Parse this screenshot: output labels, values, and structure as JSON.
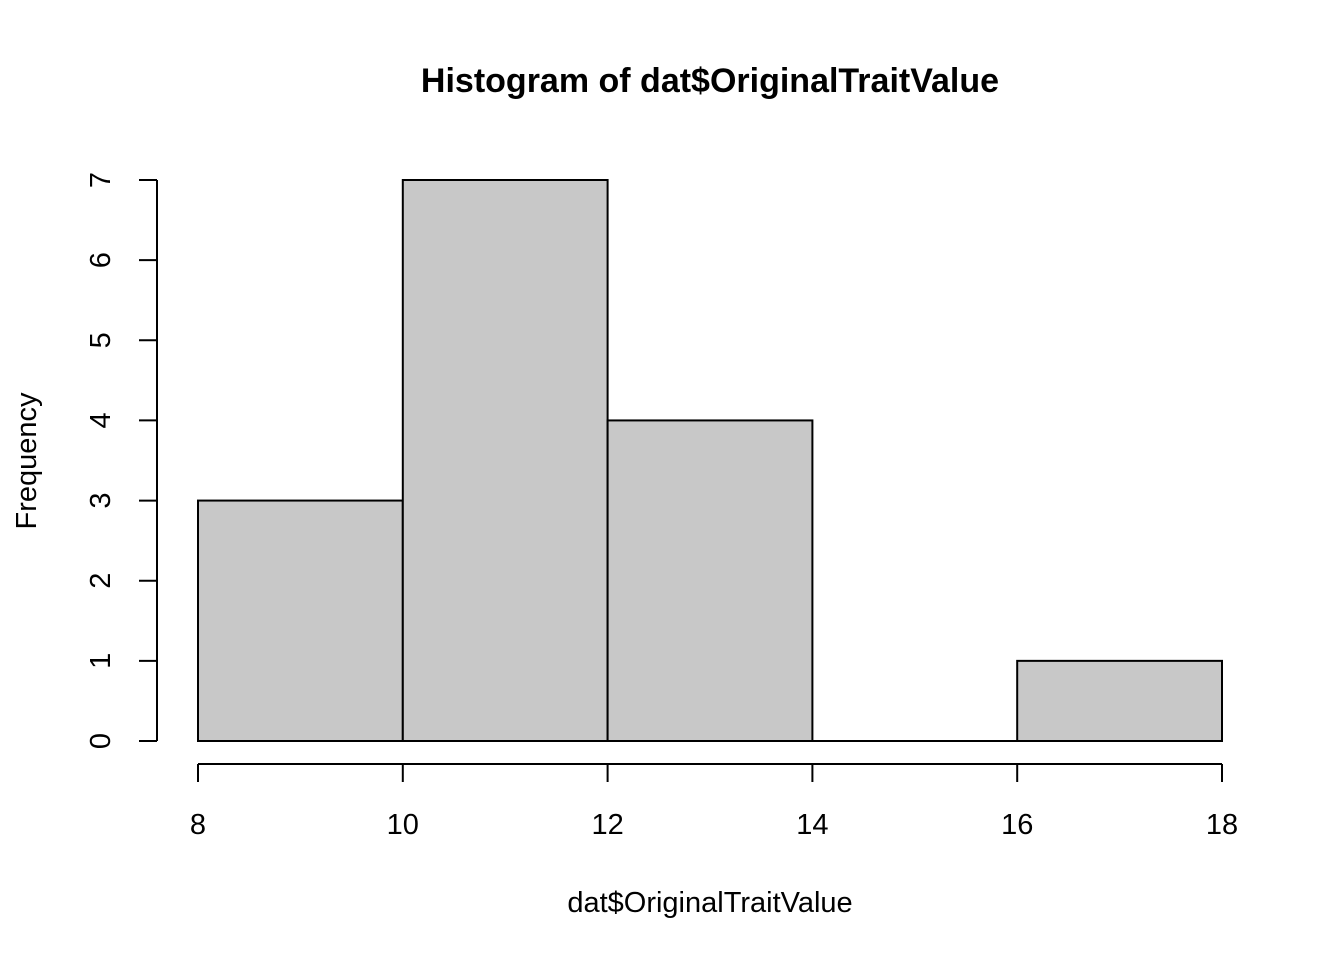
{
  "chart_data": {
    "type": "bar",
    "histogram": true,
    "title": "Histogram of dat$OriginalTraitValue",
    "xlabel": "dat$OriginalTraitValue",
    "ylabel": "Frequency",
    "bins": [
      {
        "start": 8,
        "end": 10,
        "count": 3
      },
      {
        "start": 10,
        "end": 12,
        "count": 7
      },
      {
        "start": 12,
        "end": 14,
        "count": 4
      },
      {
        "start": 14,
        "end": 16,
        "count": 0
      },
      {
        "start": 16,
        "end": 18,
        "count": 1
      }
    ],
    "xlim": [
      8,
      18
    ],
    "ylim": [
      0,
      7
    ],
    "xticks": [
      "8",
      "10",
      "12",
      "14",
      "16",
      "18"
    ],
    "yticks": [
      "0",
      "1",
      "2",
      "3",
      "4",
      "5",
      "6",
      "7"
    ],
    "bar_fill": "#c8c8c8",
    "bar_stroke": "#000000",
    "grid": false,
    "legend": "none"
  }
}
